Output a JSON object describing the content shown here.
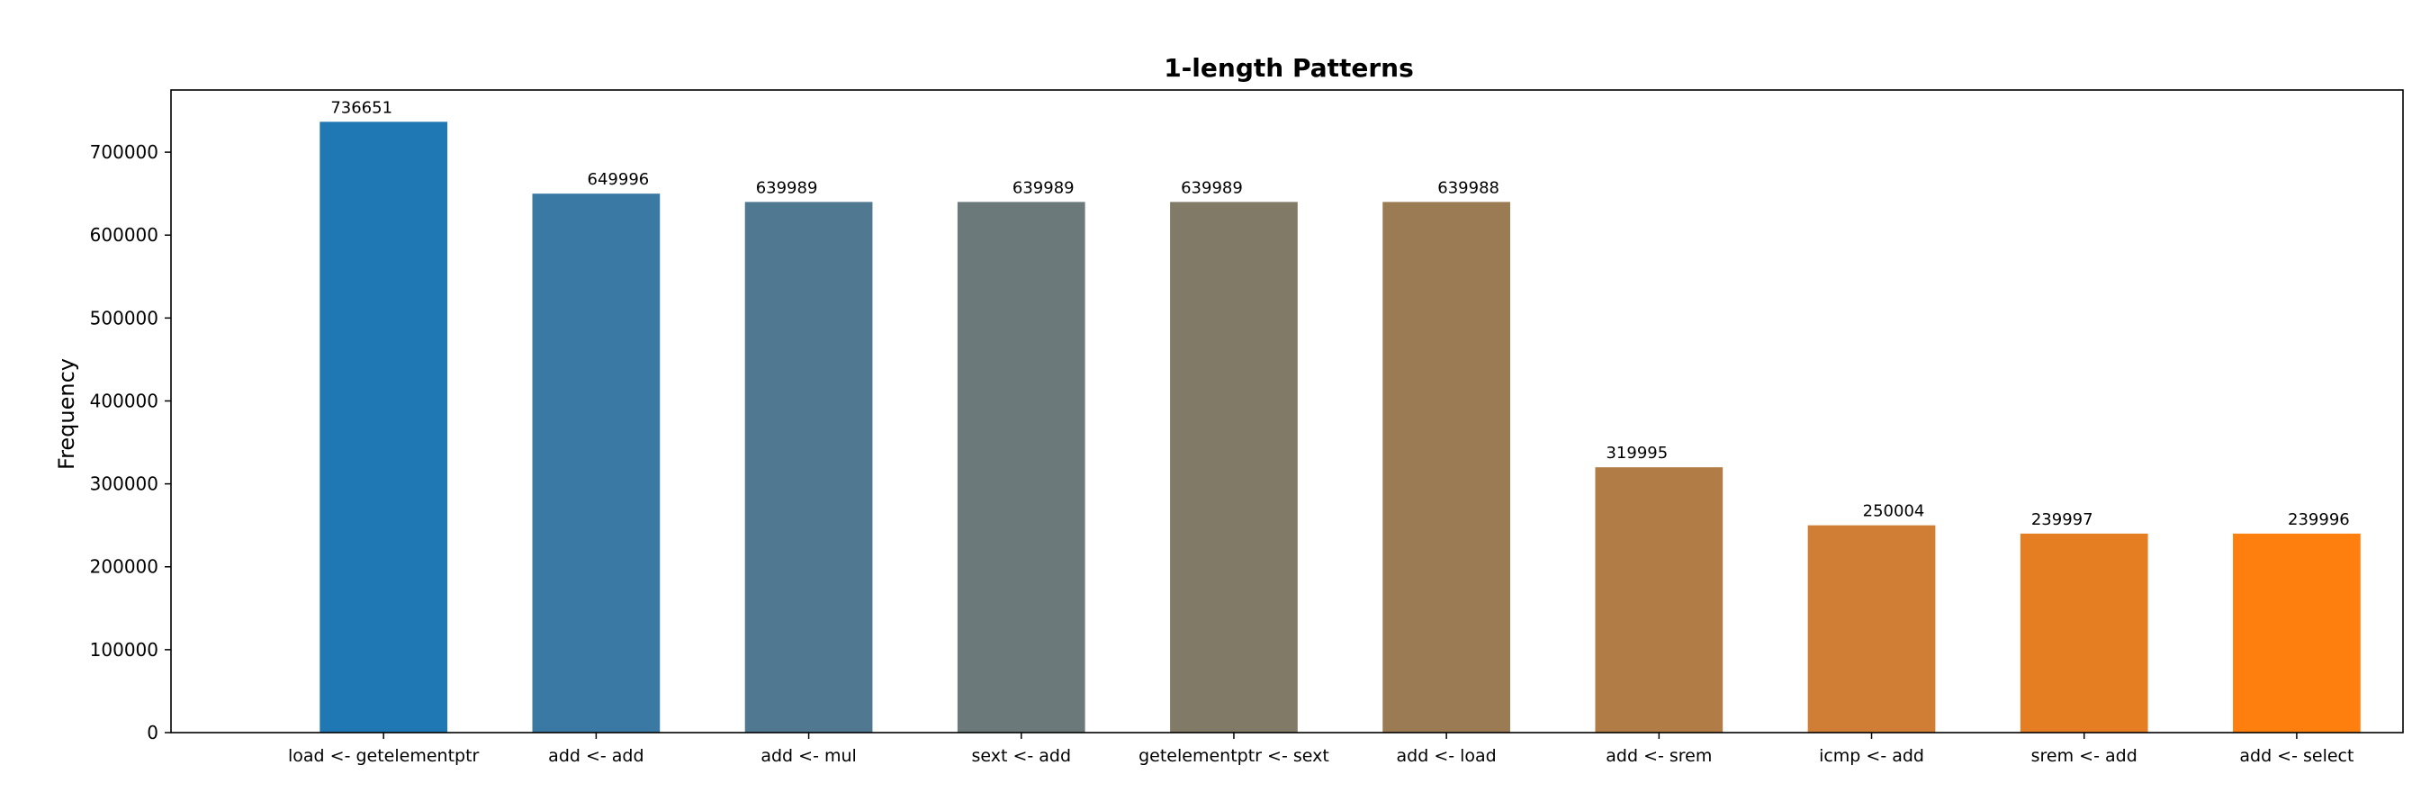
{
  "chart_data": {
    "type": "bar",
    "title": "1-length Patterns",
    "xlabel": "",
    "ylabel": "Frequency",
    "ylim": [
      0,
      775000
    ],
    "yticks": [
      0,
      100000,
      200000,
      300000,
      400000,
      500000,
      600000,
      700000
    ],
    "grid": false,
    "categories": [
      "load <- getelementptr",
      "add <- add",
      "add <- mul",
      "sext <- add",
      "getelementptr <- sext",
      "add <- load",
      "add <- srem",
      "icmp <- add",
      "srem <- add",
      "add <- select"
    ],
    "values": [
      736651,
      649996,
      639989,
      639989,
      639989,
      639988,
      319995,
      250004,
      239997,
      239996
    ],
    "value_labels": [
      "736651",
      "649996",
      "639989",
      "639989",
      "639989",
      "639988",
      "319995",
      "250004",
      "239997",
      "239996"
    ],
    "label_align": [
      "left",
      "right",
      "left",
      "right",
      "left",
      "right",
      "left",
      "right",
      "left",
      "right"
    ],
    "colors": [
      "#1f77b4",
      "#3a79a3",
      "#517891",
      "#6b797b",
      "#817a67",
      "#9a7b53",
      "#b17c45",
      "#d07d35",
      "#e57e23",
      "#ff7f0e"
    ]
  }
}
